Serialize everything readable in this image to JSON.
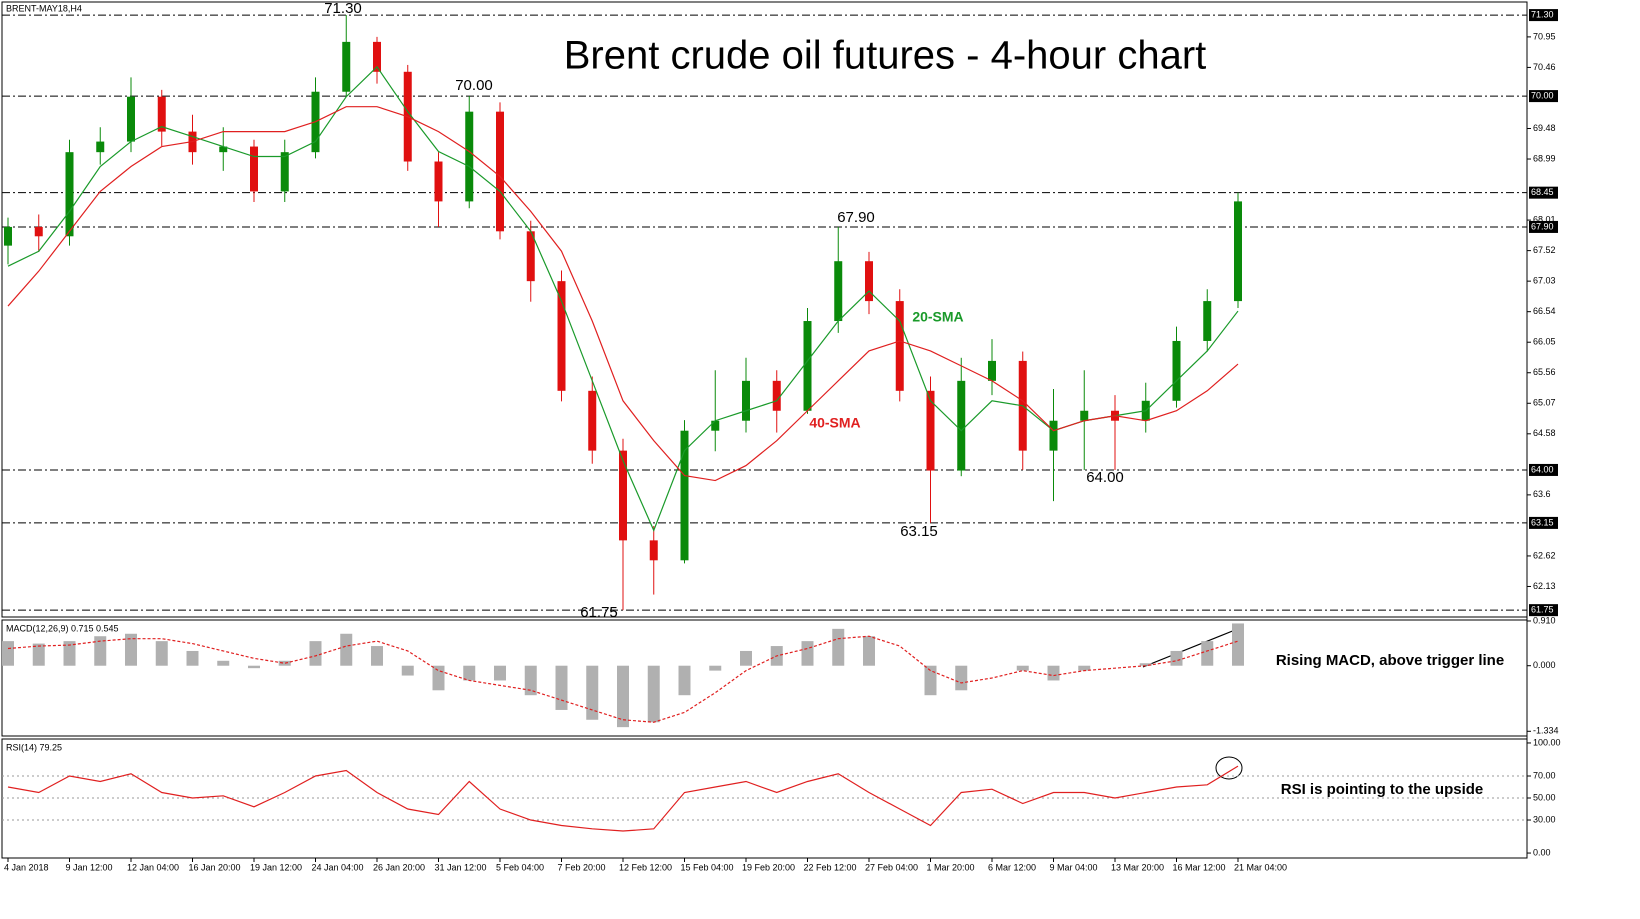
{
  "chart_data": [
    {
      "type": "candlestick",
      "title": "Brent crude oil futures - 4-hour chart",
      "symbol": "BRENT-MAY18,H4",
      "categories": [
        "4 Jan 2018",
        null,
        "9 Jan 12:00",
        null,
        "12 Jan 04:00",
        null,
        "16 Jan 20:00",
        null,
        "19 Jan 12:00",
        null,
        "24 Jan 04:00",
        null,
        "26 Jan 20:00",
        null,
        "31 Jan 12:00",
        null,
        "5 Feb 04:00",
        null,
        "7 Feb 20:00",
        null,
        "12 Feb 12:00",
        null,
        "15 Feb 04:00",
        null,
        "19 Feb 20:00",
        null,
        "22 Feb 12:00",
        null,
        "27 Feb 04:00",
        null,
        "1 Mar 20:00",
        null,
        "6 Mar 12:00",
        null,
        "9 Mar 04:00",
        null,
        "13 Mar 20:00",
        null,
        "16 Mar 12:00",
        null,
        "21 Mar 04:00"
      ],
      "open": [
        67.6,
        67.9,
        67.75,
        69.1,
        69.27,
        69.99,
        69.43,
        69.1,
        69.19,
        68.47,
        69.1,
        70.07,
        70.87,
        70.39,
        68.95,
        68.31,
        69.75,
        67.83,
        67.03,
        65.27,
        64.31,
        62.87,
        62.55,
        64.63,
        64.79,
        65.43,
        64.95,
        66.39,
        67.35,
        66.71,
        65.27,
        63.99,
        65.43,
        65.75,
        64.31,
        64.79,
        64.95,
        64.79,
        65.11,
        66.07,
        66.71
      ],
      "high": [
        68.05,
        68.1,
        69.3,
        69.5,
        70.3,
        70.1,
        69.7,
        69.5,
        69.3,
        69.3,
        70.3,
        71.3,
        70.95,
        70.5,
        69.1,
        70.0,
        69.9,
        68.0,
        67.2,
        65.5,
        64.5,
        63.1,
        64.8,
        65.6,
        65.8,
        65.6,
        66.6,
        67.9,
        67.5,
        66.9,
        65.5,
        65.8,
        66.1,
        65.9,
        65.3,
        65.6,
        65.2,
        65.4,
        66.3,
        66.9,
        68.45
      ],
      "low": [
        67.3,
        67.5,
        67.6,
        68.9,
        69.1,
        69.2,
        68.9,
        68.8,
        68.3,
        68.3,
        69.0,
        70.0,
        70.2,
        68.8,
        67.9,
        68.2,
        67.7,
        66.7,
        65.1,
        64.1,
        61.75,
        62.0,
        62.5,
        64.3,
        64.6,
        64.6,
        64.9,
        66.2,
        66.5,
        65.1,
        63.15,
        63.9,
        65.2,
        64.0,
        63.5,
        64.0,
        64.0,
        64.6,
        65.0,
        65.9,
        66.6
      ],
      "close": [
        67.9,
        67.75,
        69.1,
        69.27,
        69.99,
        69.43,
        69.1,
        69.19,
        68.47,
        69.1,
        70.07,
        70.87,
        70.39,
        68.95,
        68.31,
        69.75,
        67.83,
        67.03,
        65.27,
        64.31,
        62.87,
        62.55,
        64.63,
        64.79,
        65.43,
        64.95,
        66.39,
        67.35,
        66.71,
        65.27,
        63.99,
        65.43,
        65.75,
        64.31,
        64.79,
        64.95,
        64.79,
        65.11,
        66.07,
        66.71,
        68.31
      ],
      "up_color": "#0a8a0a",
      "down_color": "#e01010",
      "overlays": [
        {
          "name": "20-SMA",
          "color": "#1a9a2a",
          "values": [
            67.27,
            67.51,
            68.15,
            68.87,
            69.27,
            69.51,
            69.35,
            69.19,
            69.03,
            69.03,
            69.27,
            69.99,
            70.47,
            69.75,
            69.11,
            68.87,
            68.47,
            67.83,
            66.71,
            65.43,
            64.15,
            63.03,
            64.31,
            64.79,
            64.95,
            65.11,
            65.75,
            66.39,
            66.87,
            66.39,
            65.11,
            64.63,
            65.11,
            65.03,
            64.63,
            64.79,
            64.87,
            64.95,
            65.43,
            65.91,
            66.55
          ]
        },
        {
          "name": "40-SMA",
          "color": "#e02020",
          "values": [
            66.63,
            67.19,
            67.83,
            68.47,
            68.87,
            69.19,
            69.27,
            69.43,
            69.43,
            69.43,
            69.59,
            69.83,
            69.83,
            69.67,
            69.43,
            69.11,
            68.71,
            68.15,
            67.51,
            66.39,
            65.11,
            64.47,
            63.91,
            63.83,
            64.07,
            64.47,
            64.95,
            65.43,
            65.91,
            66.07,
            65.91,
            65.67,
            65.43,
            65.11,
            64.63,
            64.79,
            64.87,
            64.79,
            64.95,
            65.27,
            65.7
          ]
        }
      ],
      "levels": [
        {
          "value": 71.3,
          "label": "71.30"
        },
        {
          "value": 70.0,
          "label": "70.00"
        },
        68.45,
        {
          "value": 67.9,
          "label": "67.90"
        },
        {
          "value": 64.0,
          "label": "64.00"
        },
        63.15,
        61.75
      ],
      "annotations": [
        "71.30",
        "70.00",
        "67.90",
        "63.15",
        "64.00",
        "61.75"
      ],
      "ylim": [
        61.64,
        71.51
      ],
      "yticks": [
        70.95,
        70.46,
        69.48,
        68.99,
        68.01,
        67.52,
        67.03,
        66.54,
        66.05,
        65.56,
        65.07,
        64.58,
        63.6,
        62.62,
        62.13
      ]
    },
    {
      "type": "macd",
      "label": "MACD(12,26,9) 0.715 0.545",
      "note": "Rising MACD, above trigger line",
      "histogram": {
        "color": "#b0b0b0",
        "values": [
          0.5,
          0.45,
          0.5,
          0.6,
          0.65,
          0.5,
          0.3,
          0.1,
          -0.05,
          0.1,
          0.5,
          0.65,
          0.4,
          -0.2,
          -0.5,
          -0.3,
          -0.3,
          -0.6,
          -0.9,
          -1.1,
          -1.25,
          -1.15,
          -0.6,
          -0.1,
          0.3,
          0.4,
          0.5,
          0.75,
          0.6,
          0.0,
          -0.6,
          -0.5,
          0.0,
          -0.1,
          -0.3,
          -0.1,
          0.0,
          0.05,
          0.3,
          0.5,
          0.86
        ]
      },
      "signal": {
        "color": "#e02020",
        "values": [
          0.35,
          0.4,
          0.42,
          0.5,
          0.55,
          0.55,
          0.45,
          0.3,
          0.15,
          0.05,
          0.2,
          0.4,
          0.5,
          0.3,
          -0.1,
          -0.3,
          -0.4,
          -0.5,
          -0.7,
          -0.9,
          -1.1,
          -1.15,
          -0.95,
          -0.55,
          -0.1,
          0.2,
          0.35,
          0.55,
          0.6,
          0.4,
          -0.1,
          -0.35,
          -0.25,
          -0.1,
          -0.2,
          -0.1,
          -0.05,
          0.0,
          0.1,
          0.3,
          0.5
        ]
      },
      "ylim": [
        -1.43,
        0.93
      ],
      "yticks": [
        {
          "value": 0.91,
          "label": "0.910"
        },
        {
          "value": 0,
          "label": "0.000"
        },
        {
          "value": -1.334,
          "label": "-1.334"
        }
      ]
    },
    {
      "type": "rsi",
      "label": "RSI(14) 79.25",
      "note": "RSI is pointing to the upside",
      "color": "#e02020",
      "values": [
        60,
        55,
        70,
        65,
        72,
        55,
        50,
        52,
        42,
        55,
        70,
        75,
        55,
        40,
        35,
        65,
        40,
        30,
        25,
        22,
        20,
        22,
        55,
        60,
        65,
        55,
        65,
        72,
        55,
        40,
        25,
        55,
        58,
        45,
        55,
        55,
        50,
        55,
        60,
        62,
        79
      ],
      "levels": [
        70,
        50,
        30
      ],
      "ylim": [
        -4.5,
        103.6
      ],
      "yticks": [
        {
          "value": 100,
          "label": "100.00"
        },
        {
          "value": 70,
          "label": "70.00"
        },
        {
          "value": 50,
          "label": "50.00"
        },
        {
          "value": 30,
          "label": "30.00"
        },
        {
          "value": 0,
          "label": "0.00"
        }
      ]
    }
  ]
}
